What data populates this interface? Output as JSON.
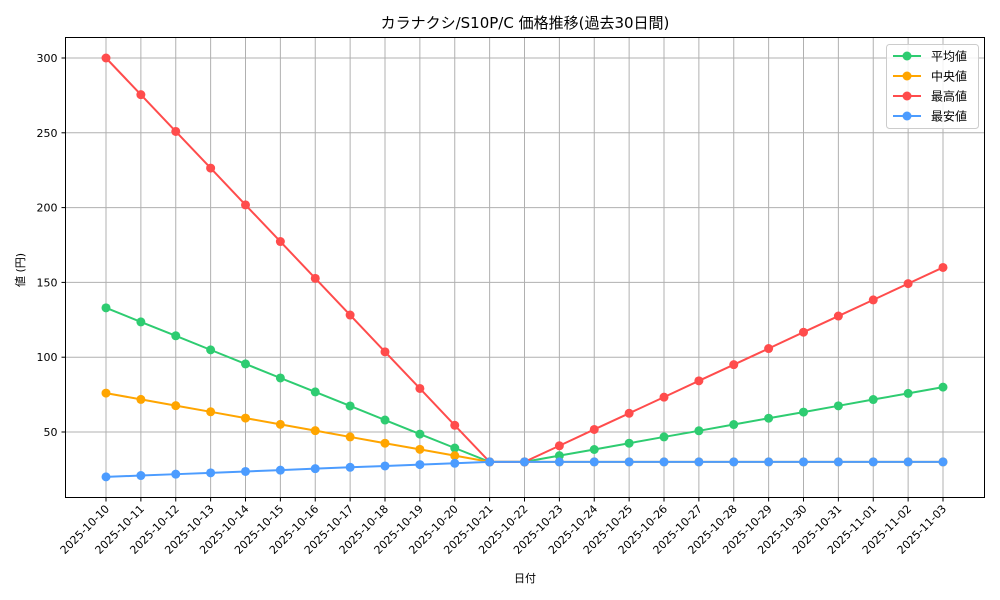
{
  "chart_data": {
    "type": "line",
    "title": "カラナクシ/S10P/C 価格推移(過去30日間)",
    "xlabel": "日付",
    "ylabel": "値 (円)",
    "ylim": [
      5.6,
      314
    ],
    "yticks": [
      50,
      100,
      150,
      200,
      250,
      300
    ],
    "grid": true,
    "legend_position": "upper right",
    "categories": [
      "2025-10-10",
      "2025-10-11",
      "2025-10-12",
      "2025-10-13",
      "2025-10-14",
      "2025-10-15",
      "2025-10-16",
      "2025-10-17",
      "2025-10-18",
      "2025-10-19",
      "2025-10-20",
      "2025-10-21",
      "2025-10-22",
      "2025-10-23",
      "2025-10-24",
      "2025-10-25",
      "2025-10-26",
      "2025-10-27",
      "2025-10-28",
      "2025-10-29",
      "2025-10-30",
      "2025-10-31",
      "2025-11-01",
      "2025-11-02",
      "2025-11-03"
    ],
    "series": [
      {
        "name": "平均値",
        "color": "#2ecc71",
        "values": [
          133,
          123.6,
          114.3,
          104.9,
          95.5,
          86.1,
          76.8,
          67.4,
          58,
          48.6,
          39.3,
          30,
          30,
          34.2,
          38.3,
          42.5,
          46.7,
          50.8,
          55,
          59.2,
          63.3,
          67.5,
          71.7,
          75.8,
          80
        ]
      },
      {
        "name": "中央値",
        "color": "#ffa500",
        "values": [
          76,
          71.8,
          67.6,
          63.5,
          59.3,
          55.1,
          50.9,
          46.7,
          42.5,
          38.4,
          34.2,
          30,
          30,
          30,
          30,
          30,
          30,
          30,
          30,
          30,
          30,
          30,
          30,
          30,
          30
        ]
      },
      {
        "name": "最高値",
        "color": "#ff4c4c",
        "values": [
          300,
          275.5,
          250.9,
          226.4,
          201.8,
          177.3,
          152.7,
          128.2,
          103.6,
          79.1,
          54.5,
          30,
          30,
          40.8,
          51.7,
          62.5,
          73.3,
          84.2,
          95,
          105.8,
          116.7,
          127.5,
          138.3,
          149.2,
          160
        ]
      },
      {
        "name": "最安値",
        "color": "#4c9cff",
        "values": [
          20,
          20.9,
          21.8,
          22.7,
          23.6,
          24.5,
          25.5,
          26.4,
          27.3,
          28.2,
          29.1,
          30,
          30,
          30,
          30,
          30,
          30,
          30,
          30,
          30,
          30,
          30,
          30,
          30,
          30
        ]
      }
    ]
  }
}
